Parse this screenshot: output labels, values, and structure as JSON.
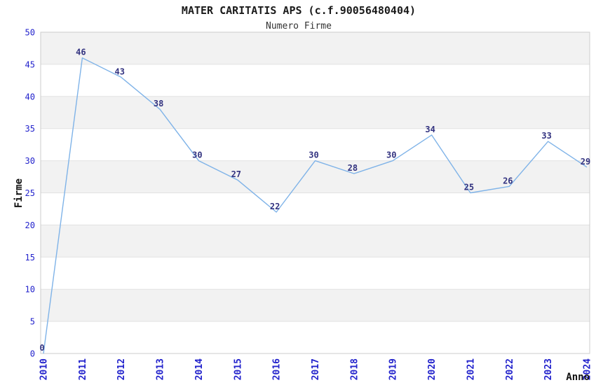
{
  "chart_data": {
    "type": "line",
    "title": "MATER CARITATIS APS (c.f.90056480404)",
    "subtitle": "Numero Firme",
    "xlabel": "Anno",
    "ylabel": "Firme",
    "categories": [
      "2010",
      "2011",
      "2012",
      "2013",
      "2014",
      "2015",
      "2016",
      "2017",
      "2018",
      "2019",
      "2020",
      "2021",
      "2022",
      "2023",
      "2024"
    ],
    "values": [
      0,
      46,
      43,
      38,
      30,
      27,
      22,
      30,
      28,
      30,
      34,
      25,
      26,
      33,
      29
    ],
    "ylim": [
      0,
      50
    ],
    "ytick_step": 5,
    "grid": true,
    "legend_position": "none",
    "band_pattern": "alternating 5-unit horizontal bands, shaded on 5-10, 15-20, 25-30, 35-40, 45-50",
    "colors": {
      "line": "#7fb3e8",
      "band": "#f2f2f2",
      "grid": "#e2e2e2",
      "border": "#cccccc",
      "tick_label": "#2222cc",
      "data_label": "#333380",
      "title": "#1a1a1a",
      "subtitle": "#333333",
      "axis_title": "#111111"
    }
  }
}
